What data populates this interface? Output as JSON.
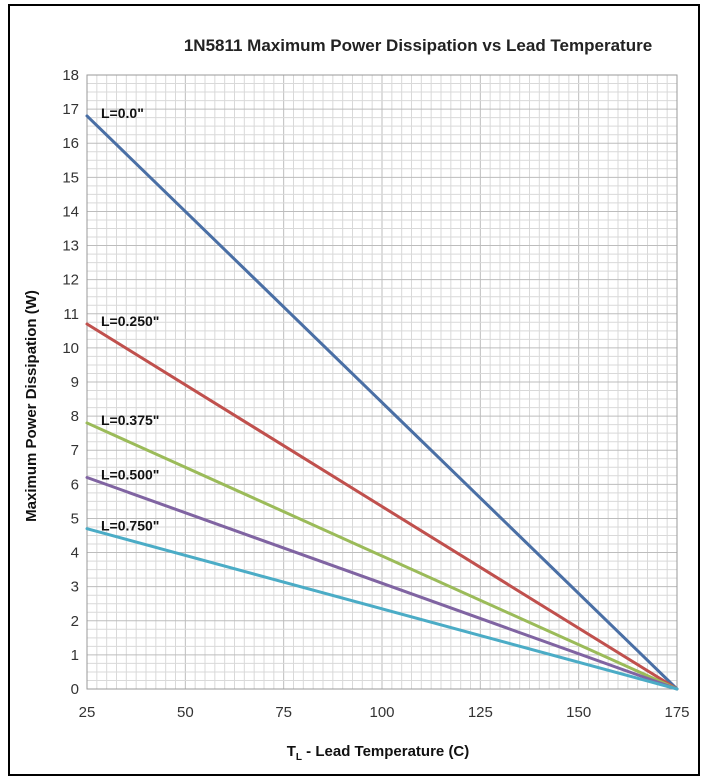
{
  "chart_data": {
    "type": "line",
    "title": "1N5811 Maximum Power Dissipation vs Lead Temperature",
    "xlabel_main": "T",
    "xlabel_sub": "L",
    "xlabel_rest": " - Lead Temperature (C)",
    "ylabel": "Maximum Power Dissipation (W)",
    "xlim": [
      25,
      175
    ],
    "ylim": [
      0,
      18
    ],
    "x_ticks": [
      25,
      50,
      75,
      100,
      125,
      150,
      175
    ],
    "y_ticks": [
      0,
      1,
      2,
      3,
      4,
      5,
      6,
      7,
      8,
      9,
      10,
      11,
      12,
      13,
      14,
      15,
      16,
      17,
      18
    ],
    "grid": true,
    "series": [
      {
        "name": "L=0.0\"",
        "color": "#4a6fa5",
        "x": [
          25,
          175
        ],
        "y": [
          16.8,
          0
        ]
      },
      {
        "name": "L=0.250\"",
        "color": "#c0504d",
        "x": [
          25,
          175
        ],
        "y": [
          10.7,
          0
        ]
      },
      {
        "name": "L=0.375\"",
        "color": "#9bbb59",
        "x": [
          25,
          175
        ],
        "y": [
          7.8,
          0
        ]
      },
      {
        "name": "L=0.500\"",
        "color": "#8064a2",
        "x": [
          25,
          175
        ],
        "y": [
          6.2,
          0
        ]
      },
      {
        "name": "L=0.750\"",
        "color": "#4bacc6",
        "x": [
          25,
          175
        ],
        "y": [
          4.7,
          0
        ]
      }
    ]
  }
}
